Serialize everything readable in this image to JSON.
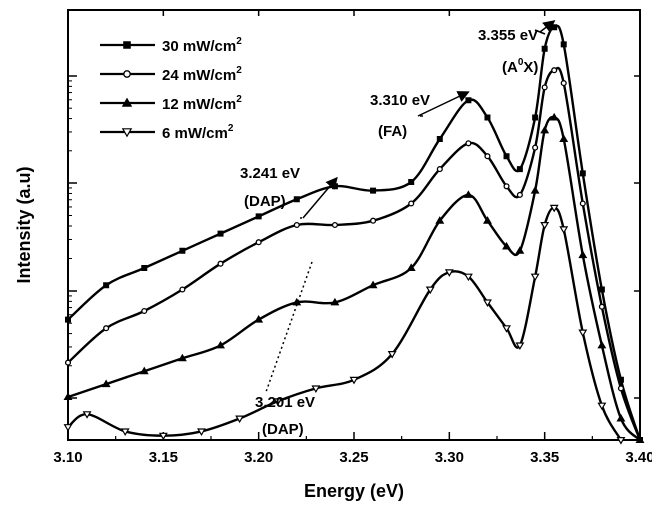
{
  "chart_data": {
    "type": "line",
    "xlabel": "Energy (eV)",
    "ylabel": "Intensity (a.u)",
    "xlim": [
      3.1,
      3.4
    ],
    "xticks": [
      "3.10",
      "3.15",
      "3.20",
      "3.25",
      "3.30",
      "3.35",
      "3.40"
    ],
    "ylog": true,
    "yticks_labeled": false,
    "grid": false,
    "legend_position": "top-left",
    "series": [
      {
        "name": "30 mW/cm²",
        "legend_text": "30 mW/cm",
        "legend_sup": "2",
        "marker": "square",
        "x": [
          3.1,
          3.12,
          3.14,
          3.16,
          3.18,
          3.2,
          3.22,
          3.24,
          3.26,
          3.28,
          3.295,
          3.31,
          3.32,
          3.33,
          3.337,
          3.345,
          3.35,
          3.355,
          3.36,
          3.37,
          3.38,
          3.39,
          3.4
        ],
        "y": [
          0.28,
          0.36,
          0.4,
          0.44,
          0.48,
          0.52,
          0.56,
          0.59,
          0.58,
          0.6,
          0.7,
          0.79,
          0.75,
          0.66,
          0.63,
          0.75,
          0.91,
          0.96,
          0.92,
          0.62,
          0.35,
          0.14,
          0.0
        ]
      },
      {
        "name": "24 mW/cm²",
        "legend_text": "24 mW/cm",
        "legend_sup": "2",
        "marker": "circle",
        "x": [
          3.1,
          3.12,
          3.14,
          3.16,
          3.18,
          3.2,
          3.22,
          3.24,
          3.26,
          3.28,
          3.295,
          3.31,
          3.32,
          3.33,
          3.337,
          3.345,
          3.35,
          3.355,
          3.36,
          3.37,
          3.38,
          3.39,
          3.4
        ],
        "y": [
          0.18,
          0.26,
          0.3,
          0.35,
          0.41,
          0.46,
          0.5,
          0.5,
          0.51,
          0.55,
          0.63,
          0.69,
          0.66,
          0.59,
          0.57,
          0.68,
          0.82,
          0.86,
          0.83,
          0.55,
          0.31,
          0.12,
          0.0
        ]
      },
      {
        "name": "12 mW/cm²",
        "legend_text": "12 mW/cm",
        "legend_sup": "2",
        "marker": "triangle-up",
        "x": [
          3.1,
          3.12,
          3.14,
          3.16,
          3.18,
          3.2,
          3.22,
          3.24,
          3.26,
          3.28,
          3.295,
          3.31,
          3.32,
          3.33,
          3.337,
          3.345,
          3.35,
          3.355,
          3.36,
          3.37,
          3.38,
          3.39,
          3.4
        ],
        "y": [
          0.1,
          0.13,
          0.16,
          0.19,
          0.22,
          0.28,
          0.32,
          0.32,
          0.36,
          0.4,
          0.51,
          0.57,
          0.51,
          0.45,
          0.44,
          0.58,
          0.72,
          0.75,
          0.7,
          0.43,
          0.22,
          0.05,
          0.0
        ]
      },
      {
        "name": "6 mW/cm²",
        "legend_text": "6 mW/cm",
        "legend_sup": "2",
        "marker": "triangle-down",
        "x": [
          3.1,
          3.11,
          3.13,
          3.15,
          3.17,
          3.19,
          3.21,
          3.23,
          3.25,
          3.27,
          3.29,
          3.3,
          3.31,
          3.32,
          3.33,
          3.337,
          3.345,
          3.35,
          3.355,
          3.36,
          3.37,
          3.38,
          3.39
        ],
        "y": [
          0.03,
          0.06,
          0.02,
          0.01,
          0.02,
          0.05,
          0.09,
          0.12,
          0.14,
          0.2,
          0.35,
          0.39,
          0.38,
          0.32,
          0.26,
          0.22,
          0.38,
          0.5,
          0.54,
          0.49,
          0.25,
          0.08,
          0.0
        ]
      }
    ],
    "annotations": [
      {
        "line1": "3.355 eV",
        "line2": "(A",
        "line2_sup": "0",
        "line2_end": "X)",
        "point_x": 3.355,
        "point_y": 0.965,
        "arrow": true
      },
      {
        "line1": "3.310 eV",
        "line2": "(FA)",
        "point_x": 3.31,
        "point_y": 0.8,
        "arrow": true
      },
      {
        "line1": "3.241 eV",
        "line2": "(DAP)",
        "point_x": 3.241,
        "point_y": 0.6,
        "arrow": true
      },
      {
        "line1": "3.201 eV",
        "line2": "(DAP)",
        "point_x": 3.215,
        "point_y": 0.14,
        "arrow": false
      }
    ]
  }
}
